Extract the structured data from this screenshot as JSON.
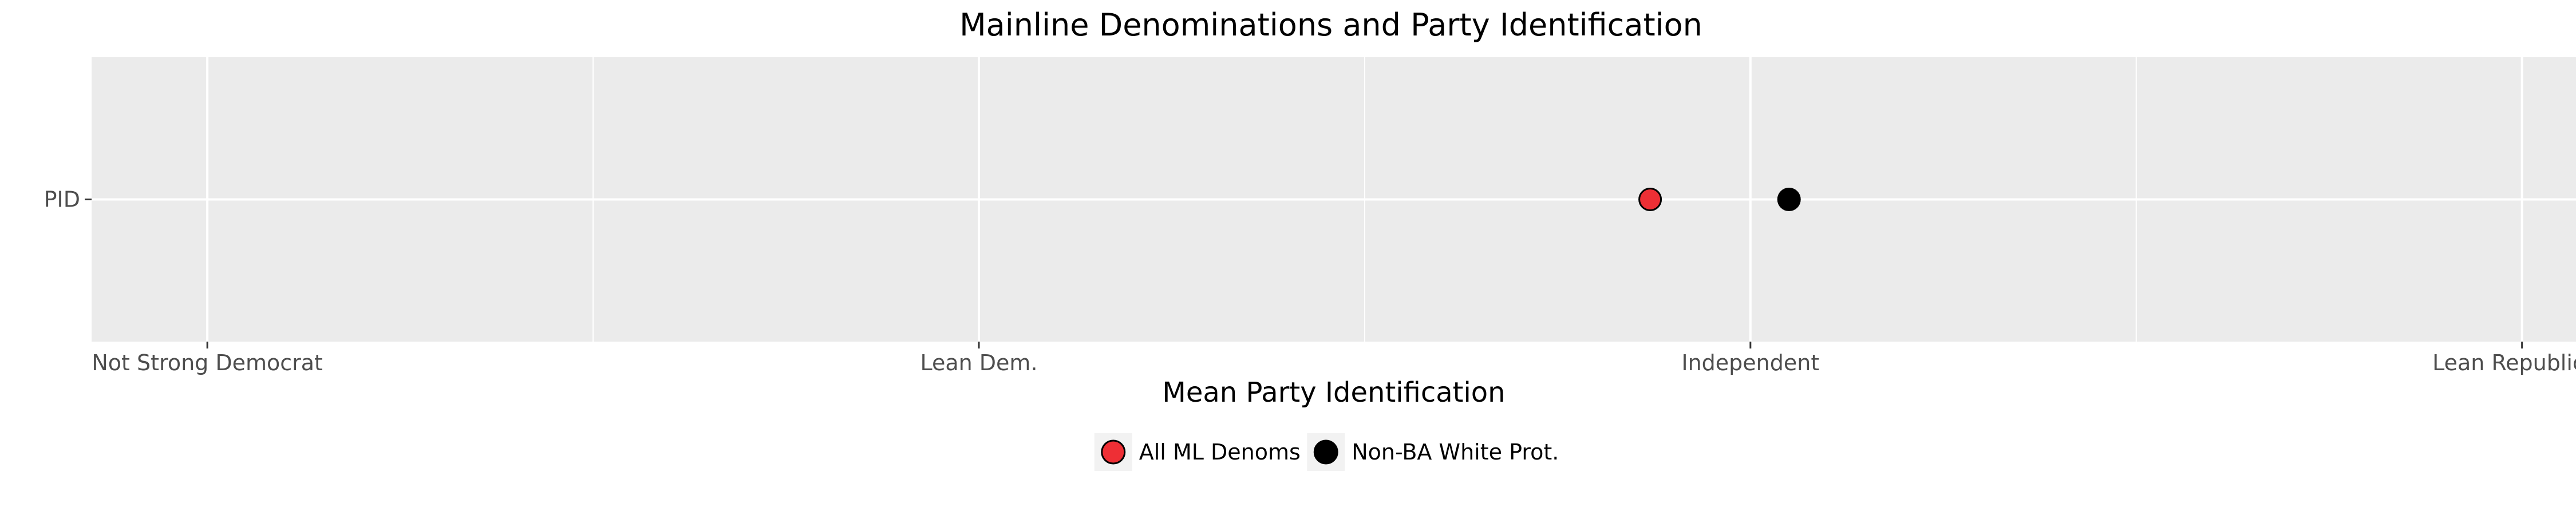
{
  "chart_data": {
    "type": "scatter",
    "title": "Mainline Denominations and Party Identification",
    "xlabel": "Mean Party Identification",
    "ylabel": "",
    "y_categories": [
      "PID"
    ],
    "x_ticks": [
      {
        "value": 2,
        "label": "Not Strong Democrat"
      },
      {
        "value": 3,
        "label": "Lean Dem."
      },
      {
        "value": 4,
        "label": "Independent"
      },
      {
        "value": 5,
        "label": "Lean Republican"
      }
    ],
    "xlim": [
      1.85,
      5.07
    ],
    "grid": true,
    "legend_position": "bottom",
    "series": [
      {
        "name": "All ML Denoms",
        "color": "#ee2f35",
        "points": [
          {
            "category": "PID",
            "x": 3.87
          }
        ]
      },
      {
        "name": "Non-BA White Prot.",
        "color": "#000000",
        "points": [
          {
            "category": "PID",
            "x": 4.05
          }
        ]
      }
    ]
  }
}
